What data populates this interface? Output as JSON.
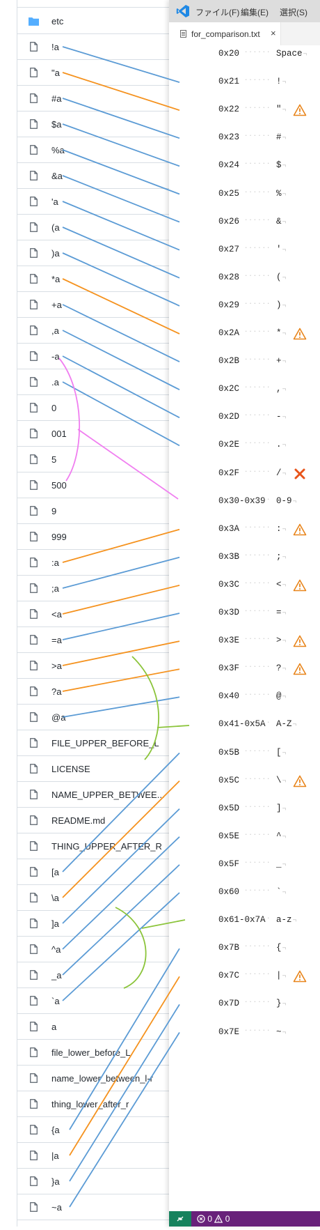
{
  "files": [
    {
      "name": "etc",
      "type": "folder"
    },
    {
      "name": "!a",
      "type": "file"
    },
    {
      "name": "\"a",
      "type": "file"
    },
    {
      "name": "#a",
      "type": "file"
    },
    {
      "name": "$a",
      "type": "file"
    },
    {
      "name": "%a",
      "type": "file"
    },
    {
      "name": "&a",
      "type": "file"
    },
    {
      "name": "'a",
      "type": "file"
    },
    {
      "name": "(a",
      "type": "file"
    },
    {
      "name": ")a",
      "type": "file"
    },
    {
      "name": "*a",
      "type": "file"
    },
    {
      "name": "+a",
      "type": "file"
    },
    {
      "name": ",a",
      "type": "file"
    },
    {
      "name": "-a",
      "type": "file"
    },
    {
      "name": ".a",
      "type": "file"
    },
    {
      "name": "0",
      "type": "file"
    },
    {
      "name": "001",
      "type": "file"
    },
    {
      "name": "5",
      "type": "file"
    },
    {
      "name": "500",
      "type": "file"
    },
    {
      "name": "9",
      "type": "file"
    },
    {
      "name": "999",
      "type": "file"
    },
    {
      "name": ":a",
      "type": "file"
    },
    {
      "name": ";a",
      "type": "file"
    },
    {
      "name": "<a",
      "type": "file"
    },
    {
      "name": "=a",
      "type": "file"
    },
    {
      "name": ">a",
      "type": "file"
    },
    {
      "name": "?a",
      "type": "file"
    },
    {
      "name": "@a",
      "type": "file"
    },
    {
      "name": "FILE_UPPER_BEFORE_L",
      "type": "file"
    },
    {
      "name": "LICENSE",
      "type": "file"
    },
    {
      "name": "NAME_UPPER_BETWEE...",
      "type": "file"
    },
    {
      "name": "README.md",
      "type": "file"
    },
    {
      "name": "THING_UPPER_AFTER_R",
      "type": "file"
    },
    {
      "name": "[a",
      "type": "file"
    },
    {
      "name": "\\a",
      "type": "file"
    },
    {
      "name": "]a",
      "type": "file"
    },
    {
      "name": "^a",
      "type": "file"
    },
    {
      "name": "_a",
      "type": "file"
    },
    {
      "name": "`a",
      "type": "file"
    },
    {
      "name": "a",
      "type": "file"
    },
    {
      "name": "file_lower_before_L",
      "type": "file"
    },
    {
      "name": "name_lower_between_l-r",
      "type": "file"
    },
    {
      "name": "thing_lower_after_r",
      "type": "file"
    },
    {
      "name": "{a",
      "type": "file"
    },
    {
      "name": "|a",
      "type": "file"
    },
    {
      "name": "}a",
      "type": "file"
    },
    {
      "name": "~a",
      "type": "file"
    }
  ],
  "editor": {
    "menu": [
      "ファイル(F)",
      "編集(E)",
      "選択(S)"
    ],
    "tab_label": "for_comparison.txt",
    "tab_close": "×",
    "lines": [
      {
        "hex": "0x20",
        "char": "Space",
        "status": "none"
      },
      {
        "hex": "0x21",
        "char": "!",
        "status": "none"
      },
      {
        "hex": "0x22",
        "char": "\"",
        "status": "warning"
      },
      {
        "hex": "0x23",
        "char": "#",
        "status": "none"
      },
      {
        "hex": "0x24",
        "char": "$",
        "status": "none"
      },
      {
        "hex": "0x25",
        "char": "%",
        "status": "none"
      },
      {
        "hex": "0x26",
        "char": "&",
        "status": "none"
      },
      {
        "hex": "0x27",
        "char": "'",
        "status": "none"
      },
      {
        "hex": "0x28",
        "char": "(",
        "status": "none"
      },
      {
        "hex": "0x29",
        "char": ")",
        "status": "none"
      },
      {
        "hex": "0x2A",
        "char": "*",
        "status": "warning"
      },
      {
        "hex": "0x2B",
        "char": "+",
        "status": "none"
      },
      {
        "hex": "0x2C",
        "char": ",",
        "status": "none"
      },
      {
        "hex": "0x2D",
        "char": "-",
        "status": "none"
      },
      {
        "hex": "0x2E",
        "char": ".",
        "status": "none"
      },
      {
        "hex": "0x2F",
        "char": "/",
        "status": "error"
      },
      {
        "hex": "0x30-0x39",
        "char": "0-9",
        "status": "none"
      },
      {
        "hex": "0x3A",
        "char": ":",
        "status": "warning"
      },
      {
        "hex": "0x3B",
        "char": ";",
        "status": "none"
      },
      {
        "hex": "0x3C",
        "char": "<",
        "status": "warning"
      },
      {
        "hex": "0x3D",
        "char": "=",
        "status": "none"
      },
      {
        "hex": "0x3E",
        "char": ">",
        "status": "warning"
      },
      {
        "hex": "0x3F",
        "char": "?",
        "status": "warning"
      },
      {
        "hex": "0x40",
        "char": "@",
        "status": "none"
      },
      {
        "hex": "0x41-0x5A",
        "char": "A-Z",
        "status": "none"
      },
      {
        "hex": "0x5B",
        "char": "[",
        "status": "none"
      },
      {
        "hex": "0x5C",
        "char": "\\",
        "status": "warning"
      },
      {
        "hex": "0x5D",
        "char": "]",
        "status": "none"
      },
      {
        "hex": "0x5E",
        "char": "^",
        "status": "none"
      },
      {
        "hex": "0x5F",
        "char": "_",
        "status": "none"
      },
      {
        "hex": "0x60",
        "char": "`",
        "status": "none"
      },
      {
        "hex": "0x61-0x7A",
        "char": "a-z",
        "status": "none"
      },
      {
        "hex": "0x7B",
        "char": "{",
        "status": "none"
      },
      {
        "hex": "0x7C",
        "char": "|",
        "status": "warning"
      },
      {
        "hex": "0x7D",
        "char": "}",
        "status": "none"
      },
      {
        "hex": "0x7E",
        "char": "~",
        "status": "none"
      }
    ]
  },
  "status_bar": {
    "remote_icon": "remote-icon",
    "errors": "0",
    "warnings": "0"
  },
  "colors": {
    "connector_blue": "#5b9bd5",
    "connector_orange": "#f5921e",
    "connector_pink": "#f07ef0",
    "connector_green": "#8bc43a",
    "warning": "#e8841a",
    "error": "#e8541a",
    "statusbar": "#68217a",
    "remote_button": "#16825d",
    "vscode_blue": "#1e88e5"
  }
}
